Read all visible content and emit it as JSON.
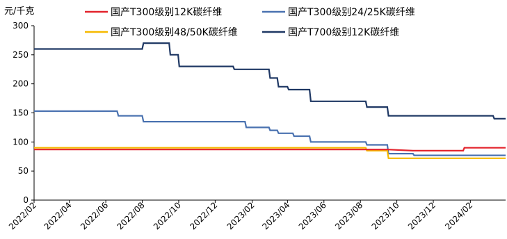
{
  "chart_data": {
    "type": "line",
    "title": "",
    "ylabel": "元/千克",
    "xlabel": "",
    "ylim": [
      0,
      300
    ],
    "yticks": [
      0,
      50,
      100,
      150,
      200,
      250,
      300
    ],
    "xlim": [
      "2022-02-01",
      "2024-03-31"
    ],
    "xticks": [
      "2022/02",
      "2022/04",
      "2022/06",
      "2022/08",
      "2022/10",
      "2022/12",
      "2023/02",
      "2023/04",
      "2023/06",
      "2023/08",
      "2023/10",
      "2023/12",
      "2024/02"
    ],
    "grid": false,
    "legend_placement": "top",
    "series": [
      {
        "name": "国产T300级别12K碳纤维",
        "color": "#e3232c",
        "points": [
          [
            "2022-02-01",
            87
          ],
          [
            "2023-08-10",
            87
          ],
          [
            "2023-09-15",
            87
          ],
          [
            "2023-10-28",
            85
          ],
          [
            "2024-01-20",
            85
          ],
          [
            "2024-01-22",
            90
          ],
          [
            "2024-03-31",
            90
          ]
        ]
      },
      {
        "name": "国产T300级别24/25K碳纤维",
        "color": "#4a72b0",
        "points": [
          [
            "2022-02-01",
            153
          ],
          [
            "2022-06-20",
            153
          ],
          [
            "2022-06-22",
            145
          ],
          [
            "2022-08-01",
            145
          ],
          [
            "2022-08-03",
            135
          ],
          [
            "2023-01-20",
            135
          ],
          [
            "2023-01-22",
            125
          ],
          [
            "2023-03-01",
            125
          ],
          [
            "2023-03-03",
            120
          ],
          [
            "2023-03-15",
            120
          ],
          [
            "2023-03-17",
            115
          ],
          [
            "2023-04-10",
            115
          ],
          [
            "2023-04-12",
            110
          ],
          [
            "2023-05-08",
            110
          ],
          [
            "2023-05-10",
            100
          ],
          [
            "2023-08-10",
            100
          ],
          [
            "2023-08-12",
            95
          ],
          [
            "2023-09-15",
            95
          ],
          [
            "2023-09-17",
            80
          ],
          [
            "2023-10-28",
            80
          ],
          [
            "2023-10-30",
            77
          ],
          [
            "2024-03-31",
            77
          ]
        ]
      },
      {
        "name": "国产T300级别48/50K碳纤维",
        "color": "#f6b900",
        "points": [
          [
            "2022-02-01",
            90
          ],
          [
            "2023-08-10",
            90
          ],
          [
            "2023-08-12",
            85
          ],
          [
            "2023-09-15",
            85
          ],
          [
            "2023-09-17",
            72
          ],
          [
            "2024-03-31",
            72
          ]
        ]
      },
      {
        "name": "国产T700级别12K碳纤维",
        "color": "#1f3864",
        "points": [
          [
            "2022-02-01",
            260
          ],
          [
            "2022-08-01",
            260
          ],
          [
            "2022-08-03",
            270
          ],
          [
            "2022-09-15",
            270
          ],
          [
            "2022-09-17",
            250
          ],
          [
            "2022-09-30",
            250
          ],
          [
            "2022-10-02",
            230
          ],
          [
            "2022-12-31",
            230
          ],
          [
            "2023-01-02",
            225
          ],
          [
            "2023-03-01",
            225
          ],
          [
            "2023-03-03",
            210
          ],
          [
            "2023-03-15",
            210
          ],
          [
            "2023-03-17",
            195
          ],
          [
            "2023-04-01",
            195
          ],
          [
            "2023-04-03",
            190
          ],
          [
            "2023-05-08",
            190
          ],
          [
            "2023-05-10",
            170
          ],
          [
            "2023-08-10",
            170
          ],
          [
            "2023-08-12",
            160
          ],
          [
            "2023-09-15",
            160
          ],
          [
            "2023-09-17",
            145
          ],
          [
            "2024-03-10",
            145
          ],
          [
            "2024-03-12",
            140
          ],
          [
            "2024-03-31",
            140
          ]
        ]
      }
    ]
  }
}
